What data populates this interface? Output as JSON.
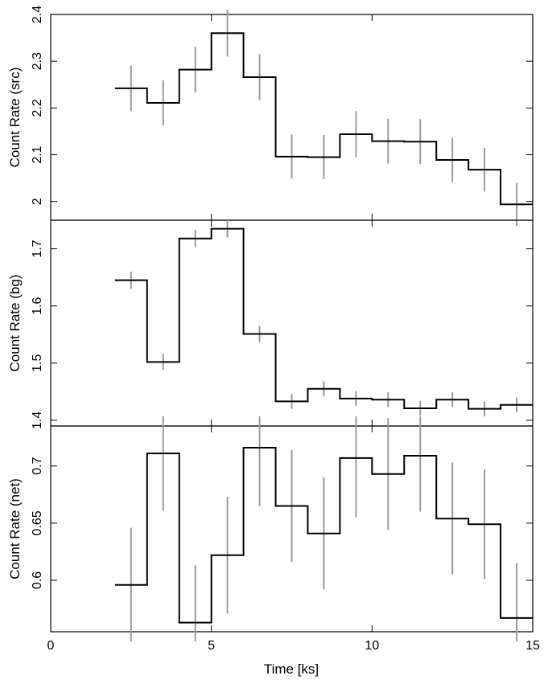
{
  "chart_data": {
    "type": "line",
    "style": "step-histogram-with-error-bars",
    "xlabel": "Time [ks]",
    "xlim": [
      0,
      15
    ],
    "x_ticks": [
      0,
      5,
      10,
      15
    ],
    "bin_edges": [
      2,
      3,
      4,
      5,
      6,
      7,
      8,
      9,
      10,
      11,
      12,
      13,
      14,
      15
    ],
    "bin_centers": [
      2.5,
      3.5,
      4.5,
      5.5,
      6.5,
      7.5,
      8.5,
      9.5,
      10.5,
      11.5,
      12.5,
      13.5,
      14.5
    ],
    "panels": [
      {
        "ylabel": "Count Rate (src)",
        "ylim": [
          1.96,
          2.4
        ],
        "y_ticks": [
          2,
          2.1,
          2.2,
          2.3,
          2.4
        ],
        "y_tick_labels": [
          "2",
          "2.1",
          "2.2",
          "2.3",
          "2.4"
        ],
        "values": [
          2.242,
          2.211,
          2.282,
          2.36,
          2.266,
          2.096,
          2.095,
          2.144,
          2.129,
          2.128,
          2.089,
          2.068,
          1.994
        ],
        "errors": [
          0.049,
          0.048,
          0.049,
          0.05,
          0.049,
          0.047,
          0.047,
          0.049,
          0.048,
          0.048,
          0.047,
          0.047,
          0.046
        ]
      },
      {
        "ylabel": "Count Rate (bg)",
        "ylim": [
          1.39,
          1.75
        ],
        "y_ticks": [
          1.4,
          1.5,
          1.6,
          1.7
        ],
        "y_tick_labels": [
          "1.4",
          "1.5",
          "1.6",
          "1.7"
        ],
        "values": [
          1.645,
          1.502,
          1.718,
          1.735,
          1.551,
          1.433,
          1.455,
          1.438,
          1.436,
          1.421,
          1.436,
          1.42,
          1.427
        ],
        "errors": [
          0.015,
          0.014,
          0.015,
          0.015,
          0.014,
          0.013,
          0.013,
          0.013,
          0.013,
          0.013,
          0.013,
          0.013,
          0.013
        ]
      },
      {
        "ylabel": "Count Rate (net)",
        "ylim": [
          0.555,
          0.735
        ],
        "y_ticks": [
          0.6,
          0.65,
          0.7
        ],
        "y_tick_labels": [
          "0.6",
          "0.65",
          "0.7"
        ],
        "values": [
          0.596,
          0.711,
          0.563,
          0.622,
          0.716,
          0.665,
          0.641,
          0.707,
          0.693,
          0.709,
          0.654,
          0.649,
          0.567
        ],
        "errors": [
          0.05,
          0.05,
          0.05,
          0.051,
          0.051,
          0.049,
          0.049,
          0.052,
          0.049,
          0.049,
          0.049,
          0.048,
          0.048
        ]
      }
    ]
  }
}
